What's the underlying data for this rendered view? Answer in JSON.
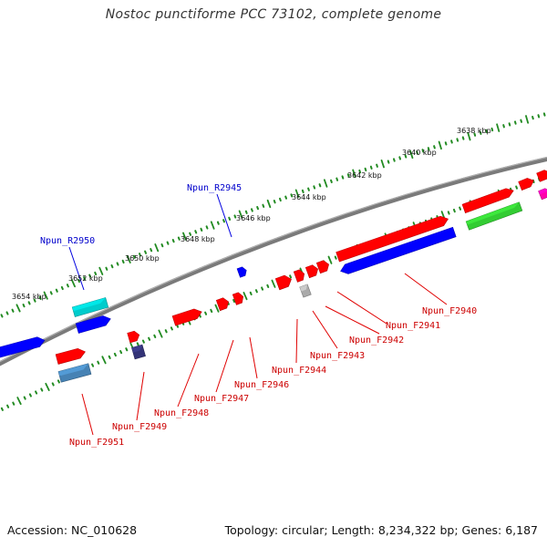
{
  "title": "Nostoc punctiforme PCC 73102, complete genome",
  "footer": {
    "accession": "Accession: NC_010628",
    "summary": "Topology: circular; Length: 8,234,322 bp; Genes: 6,187"
  },
  "colors": {
    "backbone": "#808080",
    "forward_gene": "#ff0000",
    "reverse_gene": "#0000ff",
    "ruler_ticks": "#228B22",
    "forward_label": "#cc0000",
    "reverse_label": "#0000cc",
    "tick_label": "#111111",
    "cyan_feature": "#00cccc",
    "green_feature": "#33cc33",
    "steel_feature": "#4682b4",
    "navy_feature": "#333377",
    "grey_feature": "#aaaaaa",
    "magenta_feature": "#ff00aa"
  },
  "kbp_ticks": [
    {
      "label": "3638 kbp"
    },
    {
      "label": "3640 kbp"
    },
    {
      "label": "3642 kbp"
    },
    {
      "label": "3644 kbp"
    },
    {
      "label": "3646 kbp"
    },
    {
      "label": "3648 kbp"
    },
    {
      "label": "3650 kbp"
    },
    {
      "label": "3652 kbp"
    },
    {
      "label": "3654 kbp"
    }
  ],
  "gene_labels": [
    {
      "name": "Npun_R2945",
      "strand": "reverse"
    },
    {
      "name": "Npun_R2950",
      "strand": "reverse"
    },
    {
      "name": "Npun_F2940",
      "strand": "forward"
    },
    {
      "name": "Npun_F2941",
      "strand": "forward"
    },
    {
      "name": "Npun_F2942",
      "strand": "forward"
    },
    {
      "name": "Npun_F2943",
      "strand": "forward"
    },
    {
      "name": "Npun_F2944",
      "strand": "forward"
    },
    {
      "name": "Npun_F2946",
      "strand": "forward"
    },
    {
      "name": "Npun_F2947",
      "strand": "forward"
    },
    {
      "name": "Npun_F2948",
      "strand": "forward"
    },
    {
      "name": "Npun_F2949",
      "strand": "forward"
    },
    {
      "name": "Npun_F2951",
      "strand": "forward"
    }
  ]
}
